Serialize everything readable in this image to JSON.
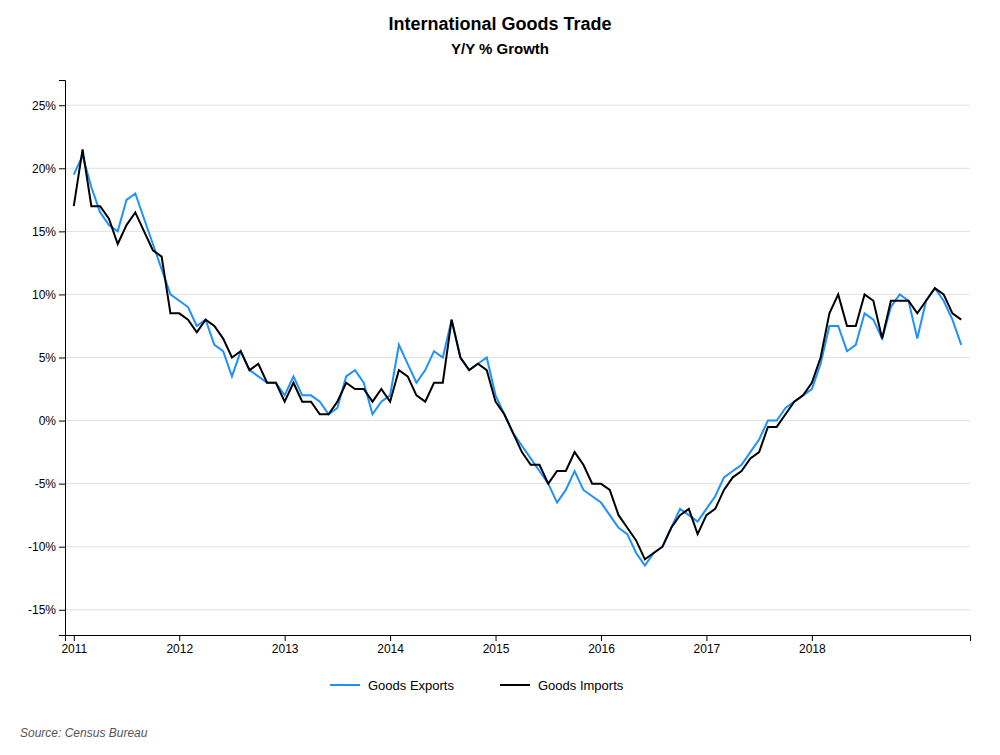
{
  "chart_data": {
    "type": "line",
    "title": "International Goods Trade",
    "subtitle": "Y/Y % Growth",
    "annotations": [
      "Source: Census Bureau"
    ],
    "categories": [
      "2011",
      null,
      null,
      null,
      null,
      null,
      null,
      null,
      null,
      null,
      null,
      null,
      "2012",
      null,
      null,
      null,
      null,
      null,
      null,
      null,
      null,
      null,
      null,
      null,
      "2013",
      null,
      null,
      null,
      null,
      null,
      null,
      null,
      null,
      null,
      null,
      null,
      "2014",
      null,
      null,
      null,
      null,
      null,
      null,
      null,
      null,
      null,
      null,
      null,
      "2015",
      null,
      null,
      null,
      null,
      null,
      null,
      null,
      null,
      null,
      null,
      null,
      "2016",
      null,
      null,
      null,
      null,
      null,
      null,
      null,
      null,
      null,
      null,
      null,
      "2017",
      null,
      null,
      null,
      null,
      null,
      null,
      null,
      null,
      null,
      null,
      null,
      "2018",
      null,
      null,
      null,
      null,
      null,
      null,
      null,
      null,
      null,
      null,
      null,
      null,
      null,
      null,
      null,
      null,
      null
    ],
    "series": [
      {
        "name": "Goods Exports",
        "color": "#1e90ff",
        "values": [
          19.5,
          21.0,
          18.5,
          16.5,
          15.5,
          15.0,
          17.5,
          18.0,
          16.0,
          14.0,
          12.0,
          10.0,
          9.5,
          9.0,
          7.5,
          8.0,
          6.0,
          5.5,
          3.5,
          5.5,
          4.0,
          3.5,
          3.0,
          3.0,
          2.0,
          3.5,
          2.0,
          2.0,
          1.5,
          0.5,
          1.0,
          3.5,
          4.0,
          3.0,
          0.5,
          1.5,
          2.0,
          6.0,
          4.5,
          3.0,
          4.0,
          5.5,
          5.0,
          8.0,
          5.0,
          4.0,
          4.5,
          5.0,
          2.0,
          0.5,
          -1.0,
          -2.0,
          -3.0,
          -4.0,
          -5.0,
          -6.5,
          -5.5,
          -4.0,
          -5.5,
          -6.0,
          -6.5,
          -7.5,
          -8.5,
          -9.0,
          -10.5,
          -11.5,
          -10.5,
          -10.0,
          -8.5,
          -7.0,
          -7.5,
          -8.0,
          -7.0,
          -6.0,
          -4.5,
          -4.0,
          -3.5,
          -2.5,
          -1.5,
          0.0,
          0.0,
          1.0,
          1.5,
          2.0,
          2.5,
          4.5,
          7.5,
          7.5,
          5.5,
          6.0,
          8.5,
          8.0,
          6.5,
          9.0,
          10.0,
          9.5,
          6.5,
          9.5,
          10.5,
          9.5,
          8.0,
          6.0
        ]
      },
      {
        "name": "Goods Imports",
        "color": "#000000",
        "values": [
          17.0,
          21.5,
          17.0,
          17.0,
          16.0,
          14.0,
          15.5,
          16.5,
          15.0,
          13.5,
          13.0,
          8.5,
          8.5,
          8.0,
          7.0,
          8.0,
          7.5,
          6.5,
          5.0,
          5.5,
          4.0,
          4.5,
          3.0,
          3.0,
          1.5,
          3.0,
          1.5,
          1.5,
          0.5,
          0.5,
          1.5,
          3.0,
          2.5,
          2.5,
          1.5,
          2.5,
          1.5,
          4.0,
          3.5,
          2.0,
          1.5,
          3.0,
          3.0,
          8.0,
          5.0,
          4.0,
          4.5,
          4.0,
          1.5,
          0.5,
          -1.0,
          -2.5,
          -3.5,
          -3.5,
          -5.0,
          -4.0,
          -4.0,
          -2.5,
          -3.5,
          -5.0,
          -5.0,
          -5.5,
          -7.5,
          -8.5,
          -9.5,
          -11.0,
          -10.5,
          -10.0,
          -8.5,
          -7.5,
          -7.0,
          -9.0,
          -7.5,
          -7.0,
          -5.5,
          -4.5,
          -4.0,
          -3.0,
          -2.5,
          -0.5,
          -0.5,
          0.5,
          1.5,
          2.0,
          3.0,
          5.0,
          8.5,
          10.0,
          7.5,
          7.5,
          10.0,
          9.5,
          6.5,
          9.5,
          9.5,
          9.5,
          8.5,
          9.5,
          10.5,
          10.0,
          8.5,
          8.0
        ]
      }
    ],
    "ylim": [
      -17,
      27
    ],
    "yticks": [
      {
        "value": -15,
        "label": "-15%"
      },
      {
        "value": -10,
        "label": "-10%"
      },
      {
        "value": -5,
        "label": "-5%"
      },
      {
        "value": 0,
        "label": "0%"
      },
      {
        "value": 5,
        "label": "5%"
      },
      {
        "value": 10,
        "label": "10%"
      },
      {
        "value": 15,
        "label": "15%"
      },
      {
        "value": 20,
        "label": "20%"
      },
      {
        "value": 25,
        "label": "25%"
      }
    ],
    "grid": true,
    "legend": "bottom"
  }
}
